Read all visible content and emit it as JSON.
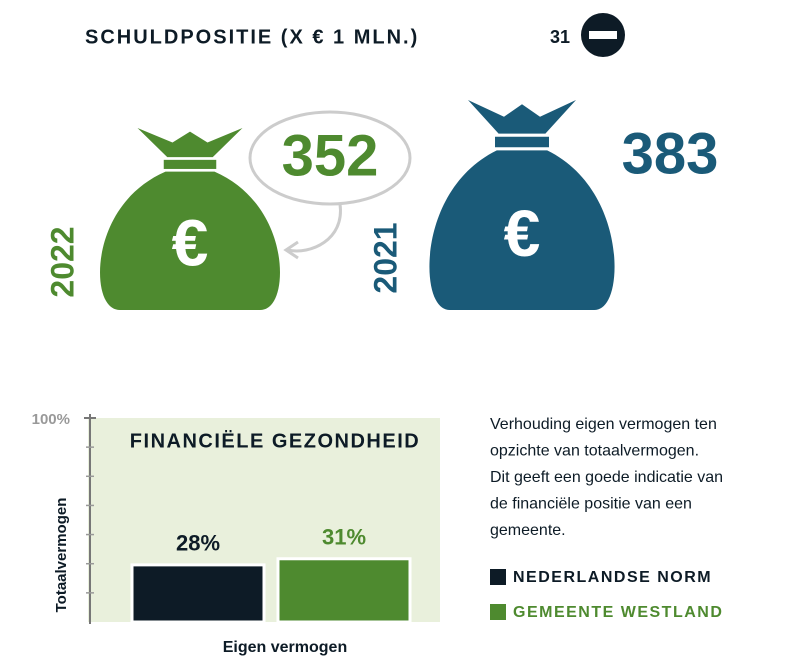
{
  "header": {
    "title": "SCHULDPOSITIE (X € 1 MLN.)",
    "change": 31
  },
  "currency_symbol": "€",
  "bags": [
    {
      "year": "2022",
      "value": 352,
      "color": "#4e8a2f"
    },
    {
      "year": "2021",
      "value": 383,
      "color": "#1a5a78"
    }
  ],
  "chart_data": {
    "type": "bar",
    "title": "FINANCIËLE GEZONDHEID",
    "x_label": "Eigen vermogen",
    "y_label": "Totaalvermogen",
    "categories": [
      null
    ],
    "series": [
      {
        "name": "NEDERLANDSE NORM",
        "color": "#0d1b26",
        "values": [
          28
        ],
        "value_labels": [
          "28%"
        ]
      },
      {
        "name": "GEMEENTE WESTLAND",
        "color": "#4e8a2f",
        "values": [
          31
        ],
        "value_labels": [
          "31%"
        ]
      }
    ],
    "ylim": [
      0,
      100
    ],
    "yticks": [
      {
        "value": 100,
        "label": "100%"
      }
    ]
  },
  "description": [
    "Verhouding eigen vermogen ten",
    "opzichte van totaalvermogen.",
    "Dit geeft een goede indicatie van",
    "de financiële positie van een",
    "gemeente."
  ]
}
